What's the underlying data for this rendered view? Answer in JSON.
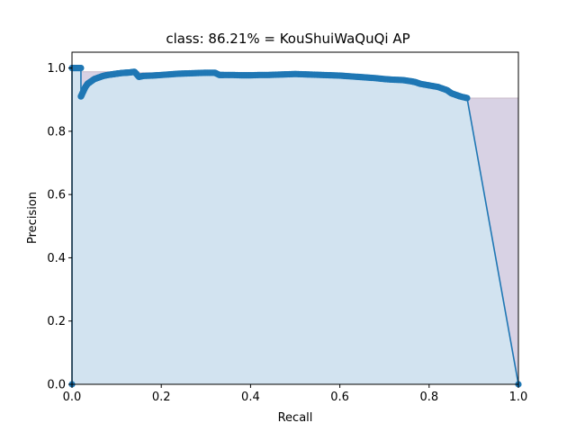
{
  "chart_data": {
    "type": "area",
    "title": "class: 86.21% = KouShuiWaQuQi AP",
    "xlabel": "Recall",
    "ylabel": "Precision",
    "xlim": [
      0.0,
      1.0
    ],
    "ylim": [
      0.0,
      1.05
    ],
    "xticks": [
      "0.0",
      "0.2",
      "0.4",
      "0.6",
      "0.8",
      "1.0"
    ],
    "yticks": [
      "0.0",
      "0.2",
      "0.4",
      "0.6",
      "0.8",
      "1.0"
    ],
    "grid": false,
    "colors": {
      "line": "#1f77b4",
      "fill": "#d2e3f0",
      "envelope_fill": "#d8d2e4"
    },
    "series": [
      {
        "x": [
          0.0,
          0.0,
          0.005,
          0.01,
          0.015,
          0.02,
          0.02,
          0.025,
          0.03,
          0.035,
          0.04,
          0.05,
          0.06,
          0.07,
          0.08,
          0.09,
          0.1,
          0.11,
          0.12,
          0.13,
          0.14,
          0.15,
          0.16,
          0.18,
          0.2,
          0.22,
          0.24,
          0.26,
          0.28,
          0.3,
          0.32,
          0.33,
          0.34,
          0.36,
          0.38,
          0.4,
          0.42,
          0.44,
          0.46,
          0.48,
          0.5,
          0.52,
          0.54,
          0.56,
          0.58,
          0.6,
          0.62,
          0.64,
          0.66,
          0.68,
          0.7,
          0.72,
          0.74,
          0.76,
          0.77,
          0.78,
          0.8,
          0.82,
          0.84,
          0.85,
          0.86,
          0.87,
          0.885,
          1.0
        ],
        "y": [
          0.0,
          1.0,
          1.0,
          1.0,
          1.0,
          1.0,
          0.91,
          0.925,
          0.94,
          0.95,
          0.955,
          0.965,
          0.97,
          0.975,
          0.978,
          0.98,
          0.982,
          0.984,
          0.985,
          0.986,
          0.988,
          0.972,
          0.975,
          0.976,
          0.978,
          0.98,
          0.982,
          0.983,
          0.984,
          0.985,
          0.985,
          0.978,
          0.978,
          0.978,
          0.977,
          0.977,
          0.978,
          0.978,
          0.979,
          0.98,
          0.981,
          0.98,
          0.979,
          0.978,
          0.977,
          0.976,
          0.974,
          0.972,
          0.97,
          0.968,
          0.965,
          0.963,
          0.962,
          0.958,
          0.955,
          0.95,
          0.945,
          0.94,
          0.93,
          0.92,
          0.915,
          0.91,
          0.905,
          0.0
        ]
      }
    ]
  }
}
